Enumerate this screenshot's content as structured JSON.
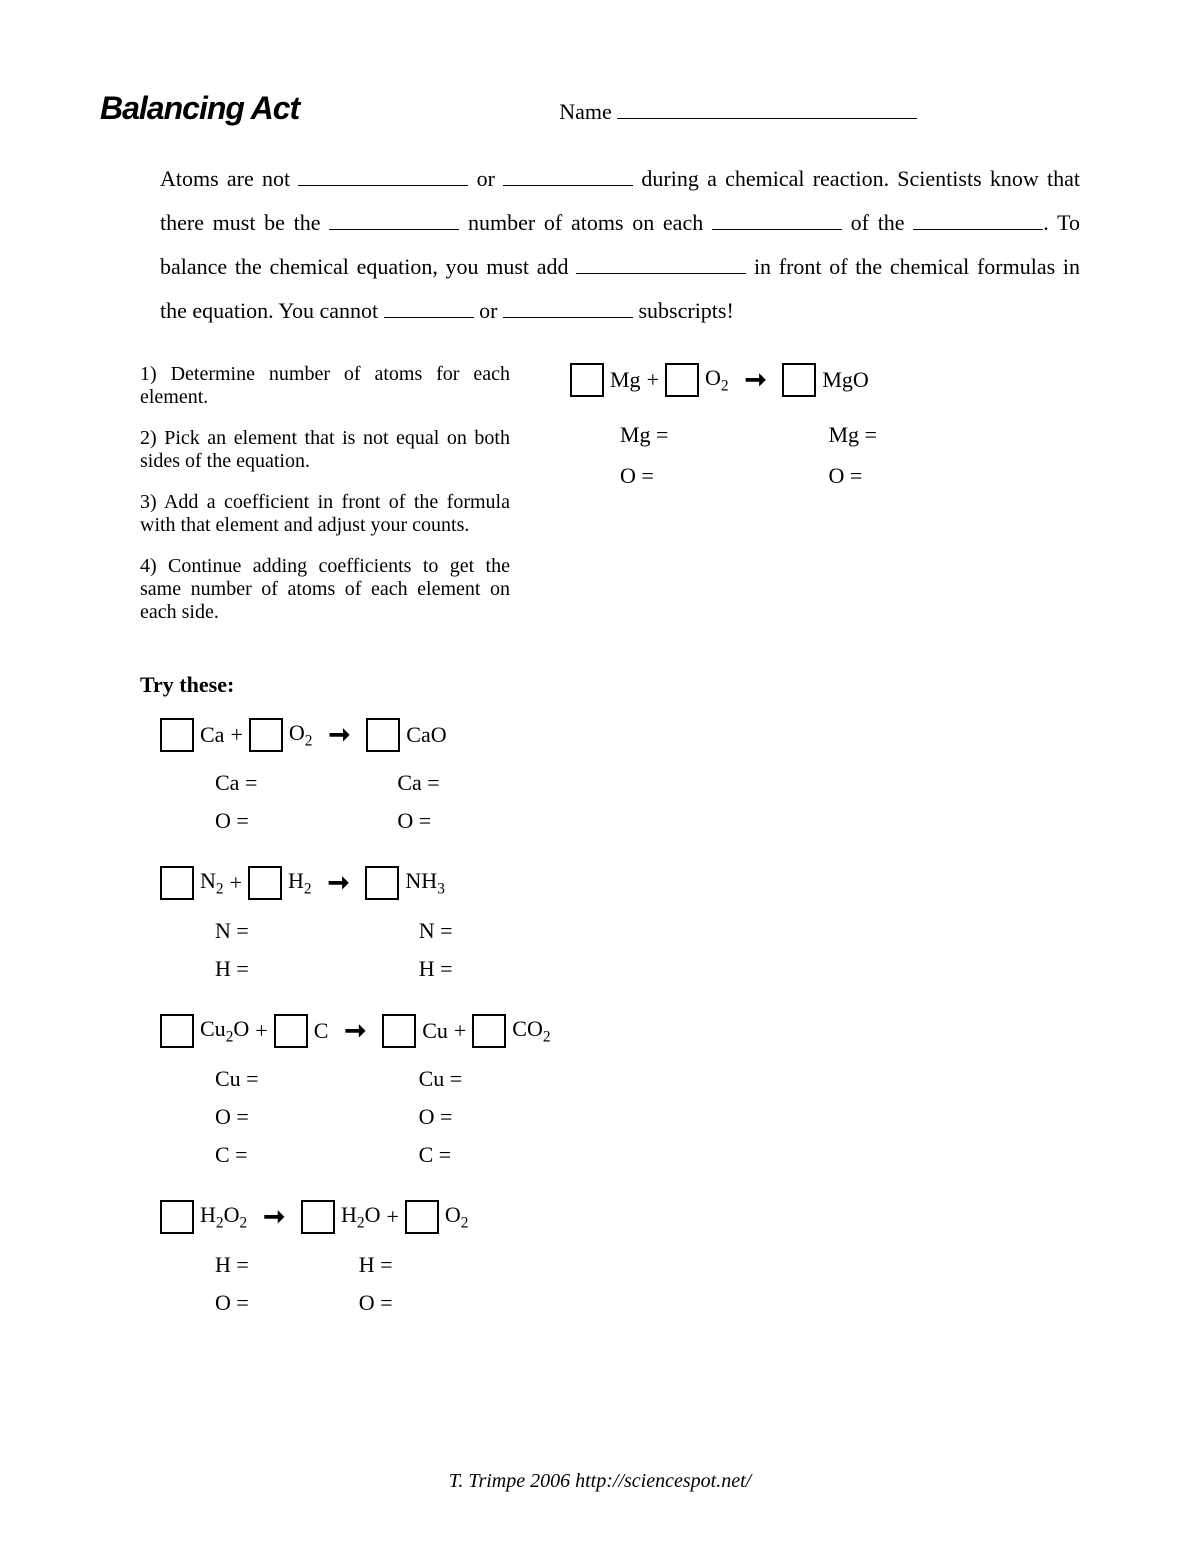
{
  "header": {
    "title": "Balancing Act",
    "name_label": "Name"
  },
  "intro": {
    "part1": "Atoms are not ",
    "part2": " or ",
    "part3": " during a chemical reaction. Scientists know that there must be the ",
    "part4": " number of atoms on each ",
    "part5": " of the ",
    "part6": ". To balance the chemical equation, you must add ",
    "part7": " in front of the chemical formulas in the equation.  You cannot ",
    "part8": " or ",
    "part9": " subscripts!"
  },
  "steps": {
    "s1": "1) Determine number of atoms for each element.",
    "s2": "2) Pick an element that is not equal on both sides of the equation.",
    "s3": "3) Add a coefficient in front of the formula with that element and adjust your counts.",
    "s4": "4) Continue adding coefficients to get the same number of atoms of each element on each side."
  },
  "example": {
    "reactant1": "Mg",
    "plus": "+",
    "reactant2_base": "O",
    "reactant2_sub": "2",
    "product": "MgO",
    "left": {
      "a": "Mg =",
      "b": "O ="
    },
    "right": {
      "a": "Mg =",
      "b": "O ="
    }
  },
  "try_heading": "Try these:",
  "problems": [
    {
      "display_terms": [
        {
          "box": true,
          "text": "Ca"
        },
        {
          "text": " + "
        },
        {
          "box": true,
          "text": "O",
          "sub": "2"
        },
        {
          "arrow": true
        },
        {
          "box": true,
          "text": "CaO"
        }
      ],
      "counts_left": [
        "Ca =",
        "O ="
      ],
      "counts_right": [
        "Ca =",
        "O ="
      ],
      "gap": 140
    },
    {
      "display_terms": [
        {
          "box": true,
          "text": "N",
          "sub": "2"
        },
        {
          "text": " + "
        },
        {
          "box": true,
          "text": "H",
          "sub": "2"
        },
        {
          "arrow": true
        },
        {
          "box": true,
          "text": "NH",
          "sub": "3"
        }
      ],
      "counts_left": [
        "N =",
        "H ="
      ],
      "counts_right": [
        "N =",
        "H ="
      ],
      "gap": 170
    },
    {
      "display_terms": [
        {
          "box": true,
          "text": "Cu",
          "sub": "2",
          "text2": "O"
        },
        {
          "text": " + "
        },
        {
          "box": true,
          "text": "C"
        },
        {
          "arrow": true
        },
        {
          "box": true,
          "text": "Cu"
        },
        {
          "text": " + "
        },
        {
          "box": true,
          "text": "CO",
          "sub": "2"
        }
      ],
      "counts_left": [
        "Cu =",
        "O =",
        "C ="
      ],
      "counts_right": [
        "Cu =",
        "O =",
        "C ="
      ],
      "gap": 160
    },
    {
      "display_terms": [
        {
          "box": true,
          "text": "H",
          "sub": "2",
          "text2": "O",
          "sub2": "2"
        },
        {
          "arrow": true
        },
        {
          "box": true,
          "text": "H",
          "sub": "2",
          "text2": "O"
        },
        {
          "text": " + "
        },
        {
          "box": true,
          "text": "O",
          "sub": "2"
        }
      ],
      "counts_left": [
        "H =",
        "O ="
      ],
      "counts_right": [
        "H =",
        "O ="
      ],
      "gap": 110
    }
  ],
  "footer": "T. Trimpe 2006   http://sciencespot.net/"
}
